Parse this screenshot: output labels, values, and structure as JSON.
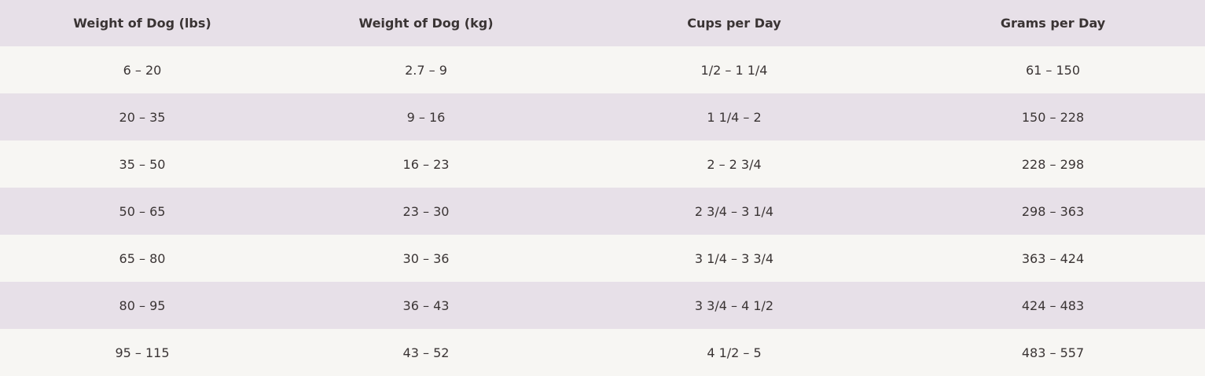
{
  "table": {
    "columns": [
      "Weight of Dog (lbs)",
      "Weight of Dog (kg)",
      "Cups per Day",
      "Grams per Day"
    ],
    "rows": [
      [
        "6 – 20",
        "2.7 – 9",
        "1/2 – 1 1/4",
        "61 – 150"
      ],
      [
        "20 – 35",
        "9 – 16",
        "1 1/4 – 2",
        "150 – 228"
      ],
      [
        "35 – 50",
        "16 – 23",
        "2 – 2 3/4",
        "228 – 298"
      ],
      [
        "50 – 65",
        "23 – 30",
        "2 3/4 – 3 1/4",
        "298 – 363"
      ],
      [
        "65 – 80",
        "30 – 36",
        "3 1/4 – 3 3/4",
        "363 – 424"
      ],
      [
        "80 – 95",
        "36 – 43",
        "3 3/4 – 4 1/2",
        "424 – 483"
      ],
      [
        "95 – 115",
        "43 – 52",
        "4 1/2 – 5",
        "483 – 557"
      ]
    ]
  }
}
